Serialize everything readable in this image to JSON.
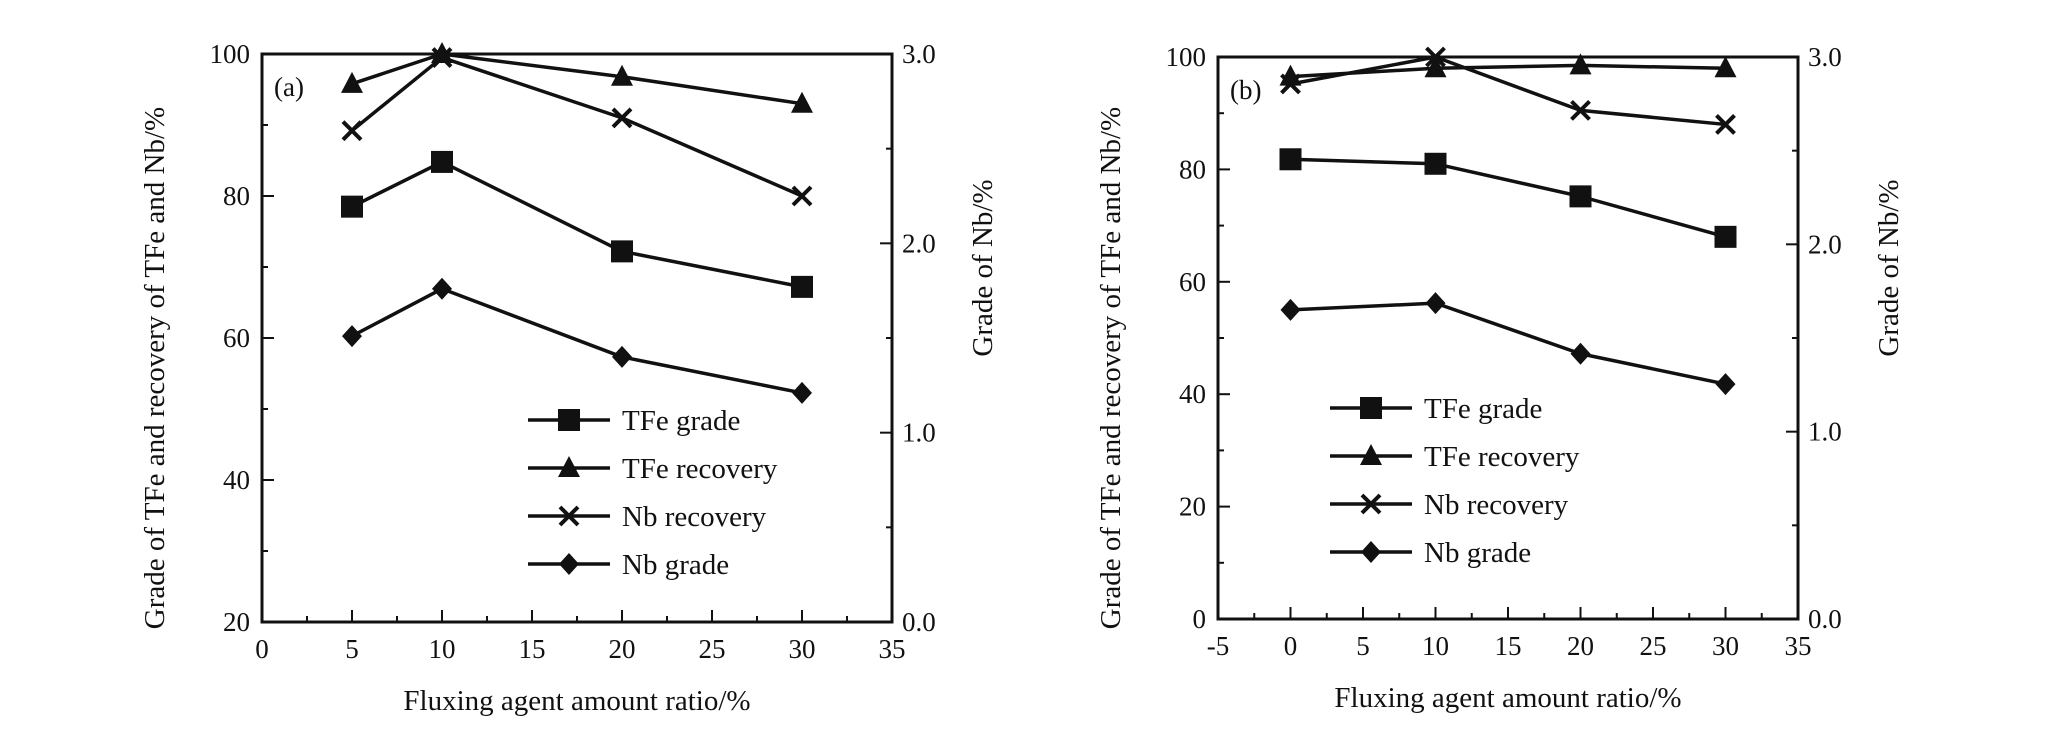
{
  "figure": {
    "panels": [
      {
        "panel_label": "(a)",
        "chart_data": {
          "type": "line",
          "x_label": "Fluxing agent amount ratio/%",
          "y_left_label": "Grade of TFe and recovery of TFe and Nb/%",
          "y_right_label": "Grade of Nb/%",
          "xlim": [
            0,
            35
          ],
          "x_ticks": [
            "0",
            "5",
            "10",
            "15",
            "20",
            "25",
            "30",
            "35"
          ],
          "ylim_left": [
            20,
            100
          ],
          "y_left_ticks": [
            "20",
            "40",
            "60",
            "80",
            "100"
          ],
          "ylim_right": [
            0.0,
            3.0
          ],
          "y_right_ticks": [
            "0.0",
            "1.0",
            "2.0",
            "3.0"
          ],
          "legend_position": "lower-right",
          "series": [
            {
              "name": "TFe grade",
              "marker": "square",
              "axis": "left",
              "x": [
                5,
                10,
                20,
                30
              ],
              "y": [
                78.5,
                84.8,
                72.2,
                67.2
              ]
            },
            {
              "name": "TFe recovery",
              "marker": "triangle",
              "axis": "left",
              "x": [
                5,
                10,
                20,
                30
              ],
              "y": [
                95.8,
                100.0,
                96.8,
                93.0
              ]
            },
            {
              "name": "Nb recovery",
              "marker": "x",
              "axis": "left",
              "x": [
                5,
                10,
                20,
                30
              ],
              "y": [
                89.2,
                99.5,
                91.0,
                80.0
              ]
            },
            {
              "name": "Nb grade",
              "marker": "diamond",
              "axis": "right",
              "x": [
                5,
                10,
                20,
                30
              ],
              "y": [
                1.51,
                1.76,
                1.4,
                1.21
              ]
            }
          ]
        }
      },
      {
        "panel_label": "(b)",
        "chart_data": {
          "type": "line",
          "x_label": "Fluxing agent amount ratio/%",
          "y_left_label": "Grade of TFe and recovery of TFe and Nb/%",
          "y_right_label": "Grade of Nb/%",
          "xlim": [
            -5,
            35
          ],
          "x_ticks": [
            "-5",
            "0",
            "5",
            "10",
            "15",
            "20",
            "25",
            "30",
            "35"
          ],
          "ylim_left": [
            0,
            100
          ],
          "y_left_ticks": [
            "0",
            "20",
            "40",
            "60",
            "80",
            "100"
          ],
          "ylim_right": [
            0.0,
            3.0
          ],
          "y_right_ticks": [
            "0.0",
            "1.0",
            "2.0",
            "3.0"
          ],
          "legend_position": "lower-left",
          "series": [
            {
              "name": "TFe grade",
              "marker": "square",
              "axis": "left",
              "x": [
                0,
                10,
                20,
                30
              ],
              "y": [
                81.8,
                81.0,
                75.2,
                68.0
              ]
            },
            {
              "name": "TFe recovery",
              "marker": "triangle",
              "axis": "left",
              "x": [
                0,
                10,
                20,
                30
              ],
              "y": [
                96.5,
                98.0,
                98.5,
                98.0
              ]
            },
            {
              "name": "Nb recovery",
              "marker": "x",
              "axis": "left",
              "x": [
                0,
                10,
                20,
                30
              ],
              "y": [
                95.2,
                100.0,
                90.5,
                88.0
              ]
            },
            {
              "name": "Nb grade",
              "marker": "diamond",
              "axis": "left",
              "x": [
                0,
                10,
                20,
                30
              ],
              "y": [
                55.0,
                56.2,
                47.2,
                41.8
              ]
            }
          ]
        }
      }
    ]
  }
}
